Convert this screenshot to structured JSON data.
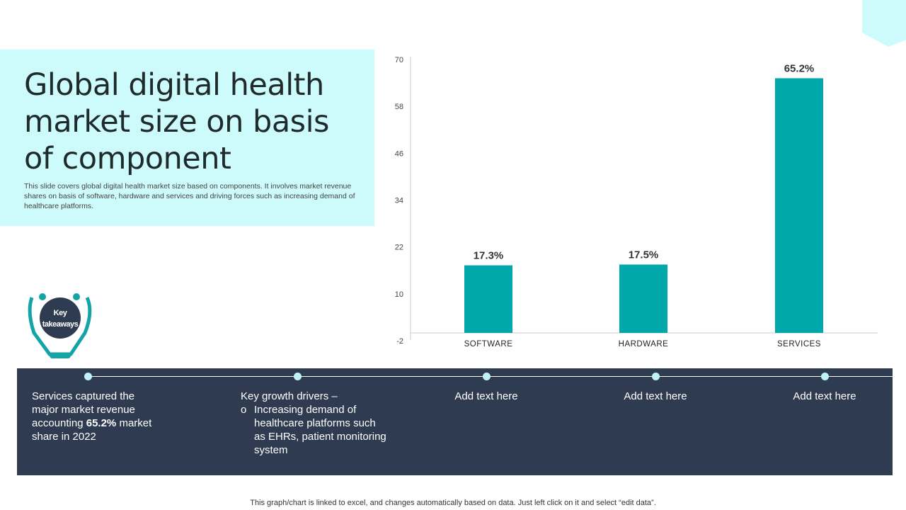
{
  "title": "Global digital health market size on basis of component",
  "description": "This slide covers global digital health market size based on components. It involves market revenue shares on basis of software, hardware and services and driving forces such as increasing demand of healthcare platforms.",
  "key_takeaways_label": "Key takeaways",
  "takeaways": [
    {
      "pre": "Services captured the major market revenue accounting ",
      "bold": "65.2%",
      "post": " market share in 2022"
    },
    {
      "heading": "Key growth drivers –",
      "bullet": "Increasing demand of healthcare platforms such as EHRs, patient monitoring system"
    },
    {
      "text": "Add text here"
    },
    {
      "text": "Add text here"
    },
    {
      "text": "Add text here"
    }
  ],
  "footer": "This graph/chart is linked to excel,  and changes automatically based on data. Just left click on it and select “edit data”.",
  "colors": {
    "bar": "#00a8ab",
    "header_bg": "#cdfafb",
    "band": "#2f3b50",
    "icon": "#14a3a6"
  },
  "icon": "stethoscope-icon",
  "chart_data": {
    "type": "bar",
    "categories": [
      "SOFTWARE",
      "HARDWARE",
      "SERVICES"
    ],
    "values": [
      17.3,
      17.5,
      65.2
    ],
    "data_labels": [
      "17.3%",
      "17.5%",
      "65.2%"
    ],
    "yticks": [
      "70",
      "58",
      "46",
      "34",
      "22",
      "10",
      "-2"
    ],
    "ylim": [
      -2,
      70
    ],
    "grid": false
  }
}
